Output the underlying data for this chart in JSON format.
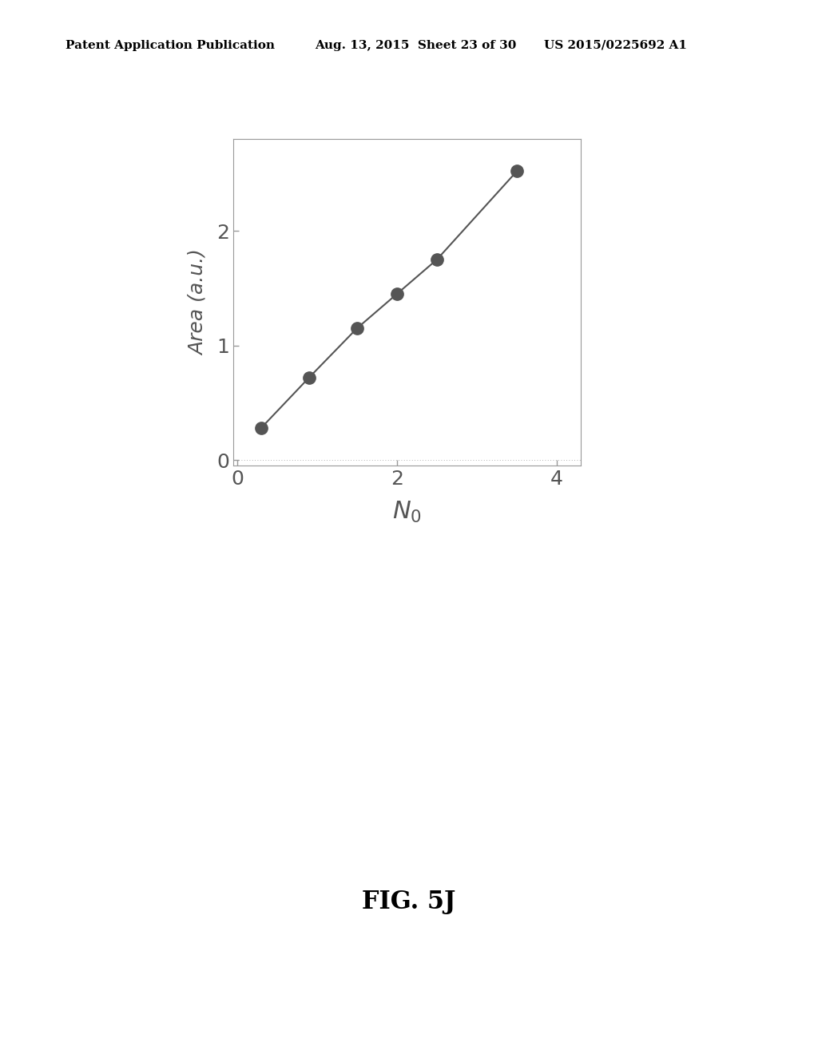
{
  "header_left": "Patent Application Publication",
  "header_mid": "Aug. 13, 2015  Sheet 23 of 30",
  "header_right": "US 2015/0225692 A1",
  "fig_caption": "FIG. 5J",
  "x_data": [
    0.3,
    0.9,
    1.5,
    2.0,
    2.5,
    3.5
  ],
  "y_data": [
    0.28,
    0.72,
    1.15,
    1.45,
    1.75,
    2.52
  ],
  "xlabel": "$N_0$",
  "ylabel": "Area (a.u.)",
  "xlim": [
    -0.05,
    4.3
  ],
  "ylim": [
    -0.05,
    2.8
  ],
  "xticks": [
    0,
    2,
    4
  ],
  "yticks": [
    0,
    1,
    2
  ],
  "line_color": "#555555",
  "marker_color": "#555555",
  "marker_size": 9,
  "background_color": "#ffffff",
  "plot_bg_color": "#ffffff",
  "xlabel_fontsize": 22,
  "ylabel_fontsize": 18,
  "tick_fontsize": 18,
  "header_fontsize": 11,
  "caption_fontsize": 22,
  "spine_color": "#999999",
  "tick_color": "#555555"
}
